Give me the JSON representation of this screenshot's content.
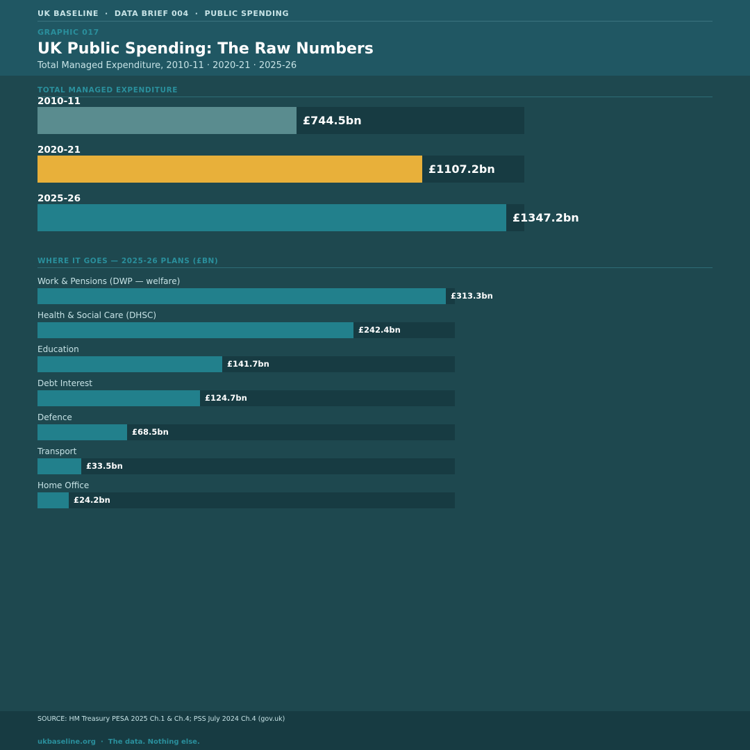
{
  "header": {
    "brand": "UK BASELINE",
    "brief": "DATA BRIEF 004",
    "topic": "PUBLIC SPENDING",
    "separator": "·",
    "graphic_no": "GRAPHIC 017",
    "title": "UK Public Spending: The Raw Numbers",
    "subtitle": "Total Managed Expenditure, 2010-11 · 2020-21 · 2025-26"
  },
  "sections": {
    "tme_label": "TOTAL MANAGED EXPENDITURE",
    "dept_label": "WHERE IT GOES — 2025-26 PLANS (£BN)"
  },
  "colors": {
    "bar_2010": "#5a8c8f",
    "bar_2020": "#e8b03a",
    "bar_2025": "#22808c",
    "dept_bar": "#22808c",
    "track": "#173b42"
  },
  "chart_data": [
    {
      "type": "bar",
      "orientation": "horizontal",
      "unit": "£bn",
      "categories": [
        "2010-11",
        "2020-21",
        "2025-26"
      ],
      "values": [
        744.5,
        1107.2,
        1347.2
      ],
      "value_labels": [
        "£744.5bn",
        "£1107.2bn",
        "£1347.2bn"
      ],
      "xlim": [
        0,
        1400
      ]
    },
    {
      "type": "bar",
      "orientation": "horizontal",
      "unit": "£bn",
      "categories": [
        "Work & Pensions (DWP — welfare)",
        "Health & Social Care (DHSC)",
        "Education",
        "Debt Interest",
        "Defence",
        "Transport",
        "Home Office"
      ],
      "values": [
        313.3,
        242.4,
        141.7,
        124.7,
        68.5,
        33.5,
        24.2
      ],
      "value_labels": [
        "£313.3bn",
        "£242.4bn",
        "£141.7bn",
        "£124.7bn",
        "£68.5bn",
        "£33.5bn",
        "£24.2bn"
      ],
      "xlim": [
        0,
        320
      ]
    }
  ],
  "footer": {
    "source": "SOURCE: HM Treasury PESA 2025 Ch.1 & Ch.4; PSS July 2024 Ch.4 (gov.uk)",
    "site": "ukbaseline.org",
    "tagline": "The data. Nothing else."
  }
}
